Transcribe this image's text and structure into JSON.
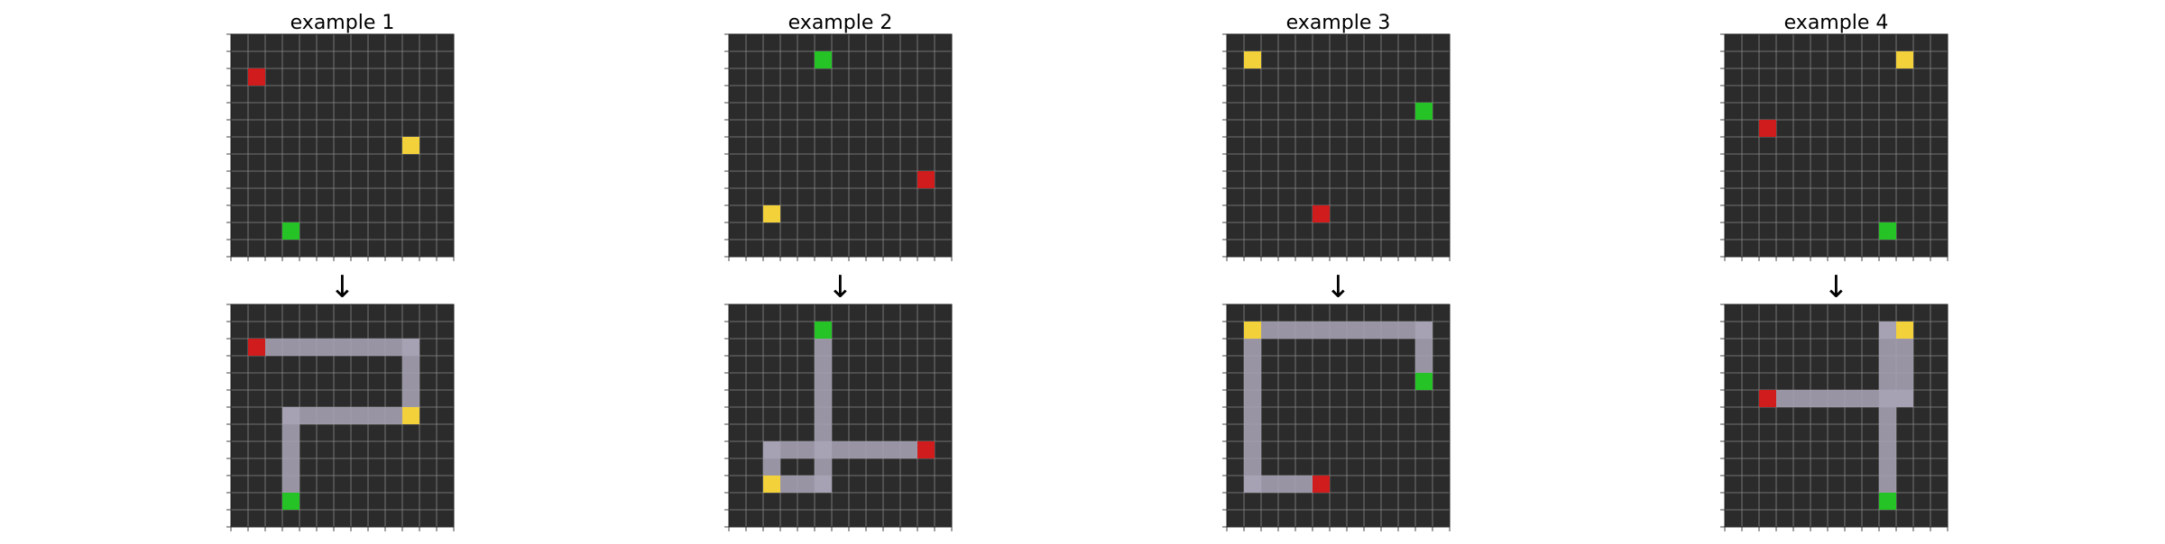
{
  "grid": {
    "rows": 13,
    "cols": 13,
    "background": "#2b2b2b",
    "grid_line_color": "#8a8a8a",
    "tick_color": "#444444"
  },
  "colors": {
    "red": "#d01c1c",
    "yellow": "#f2d13a",
    "green": "#26c326",
    "path": "#a7a3b5"
  },
  "arrow_glyph": "↓",
  "examples": [
    {
      "title": "example 1",
      "input": [
        {
          "color": "red",
          "row": 2,
          "col": 1
        },
        {
          "color": "yellow",
          "row": 6,
          "col": 10
        },
        {
          "color": "green",
          "row": 11,
          "col": 3
        }
      ],
      "output": {
        "endpoints": [
          {
            "color": "red",
            "row": 2,
            "col": 1
          },
          {
            "color": "yellow",
            "row": 6,
            "col": 10
          },
          {
            "color": "green",
            "row": 11,
            "col": 3
          }
        ],
        "paths": [
          [
            [
              2,
              1
            ],
            [
              2,
              10
            ],
            [
              6,
              10
            ]
          ],
          [
            [
              6,
              10
            ],
            [
              6,
              3
            ],
            [
              11,
              3
            ]
          ]
        ]
      }
    },
    {
      "title": "example 2",
      "input": [
        {
          "color": "green",
          "row": 1,
          "col": 5
        },
        {
          "color": "red",
          "row": 8,
          "col": 11
        },
        {
          "color": "yellow",
          "row": 10,
          "col": 2
        }
      ],
      "output": {
        "endpoints": [
          {
            "color": "green",
            "row": 1,
            "col": 5
          },
          {
            "color": "red",
            "row": 8,
            "col": 11
          },
          {
            "color": "yellow",
            "row": 10,
            "col": 2
          }
        ],
        "paths": [
          [
            [
              1,
              5
            ],
            [
              8,
              5
            ],
            [
              8,
              11
            ]
          ],
          [
            [
              8,
              5
            ],
            [
              8,
              2
            ],
            [
              10,
              2
            ]
          ],
          [
            [
              8,
              5
            ],
            [
              10,
              5
            ],
            [
              10,
              2
            ]
          ]
        ]
      }
    },
    {
      "title": "example 3",
      "input": [
        {
          "color": "yellow",
          "row": 1,
          "col": 1
        },
        {
          "color": "green",
          "row": 4,
          "col": 11
        },
        {
          "color": "red",
          "row": 10,
          "col": 5
        }
      ],
      "output": {
        "endpoints": [
          {
            "color": "yellow",
            "row": 1,
            "col": 1
          },
          {
            "color": "green",
            "row": 4,
            "col": 11
          },
          {
            "color": "red",
            "row": 10,
            "col": 5
          }
        ],
        "paths": [
          [
            [
              1,
              1
            ],
            [
              1,
              11
            ],
            [
              4,
              11
            ]
          ],
          [
            [
              1,
              1
            ],
            [
              10,
              1
            ],
            [
              10,
              5
            ]
          ]
        ]
      }
    },
    {
      "title": "example 4",
      "input": [
        {
          "color": "yellow",
          "row": 1,
          "col": 10
        },
        {
          "color": "red",
          "row": 5,
          "col": 2
        },
        {
          "color": "green",
          "row": 11,
          "col": 9
        }
      ],
      "output": {
        "endpoints": [
          {
            "color": "yellow",
            "row": 1,
            "col": 10
          },
          {
            "color": "red",
            "row": 5,
            "col": 2
          },
          {
            "color": "green",
            "row": 11,
            "col": 9
          }
        ],
        "paths": [
          [
            [
              1,
              10
            ],
            [
              5,
              10
            ],
            [
              5,
              2
            ]
          ],
          [
            [
              1,
              9
            ],
            [
              11,
              9
            ]
          ],
          [
            [
              1,
              10
            ],
            [
              1,
              9
            ]
          ]
        ]
      }
    }
  ]
}
